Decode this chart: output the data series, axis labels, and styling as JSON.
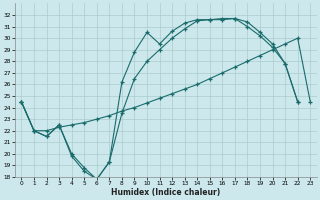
{
  "bg_color": "#cce8ec",
  "grid_color": "#aacccc",
  "line_color": "#1a6b6b",
  "xlabel": "Humidex (Indice chaleur)",
  "ylim": [
    18,
    33
  ],
  "xlim": [
    -0.5,
    23.5
  ],
  "yticks": [
    18,
    19,
    20,
    21,
    22,
    23,
    24,
    25,
    26,
    27,
    28,
    29,
    30,
    31,
    32
  ],
  "xticks": [
    0,
    1,
    2,
    3,
    4,
    5,
    6,
    7,
    8,
    9,
    10,
    11,
    12,
    13,
    14,
    15,
    16,
    17,
    18,
    19,
    20,
    21,
    22,
    23
  ],
  "curve1_x": [
    0,
    1,
    2,
    3,
    4,
    5,
    6,
    7,
    8,
    9,
    10,
    11,
    12,
    13,
    14,
    15,
    16,
    17,
    18,
    19,
    20,
    21,
    22
  ],
  "curve1_y": [
    24.5,
    22.0,
    21.5,
    22.5,
    19.8,
    18.5,
    17.8,
    19.3,
    26.2,
    28.8,
    30.5,
    29.5,
    30.6,
    31.3,
    31.6,
    31.6,
    31.7,
    31.7,
    31.4,
    30.5,
    29.5,
    27.8,
    24.5
  ],
  "curve2_x": [
    0,
    1,
    2,
    3,
    4,
    5,
    6,
    7,
    8,
    9,
    10,
    11,
    12,
    13,
    14,
    15,
    16,
    17,
    18,
    19,
    20,
    21,
    22,
    23
  ],
  "curve2_y": [
    24.5,
    22.0,
    22.0,
    22.3,
    22.5,
    22.7,
    23.0,
    23.3,
    23.7,
    24.0,
    24.4,
    24.8,
    25.2,
    25.6,
    26.0,
    26.5,
    27.0,
    27.5,
    28.0,
    28.5,
    29.0,
    29.5,
    30.0,
    24.5
  ],
  "curve3_x": [
    0,
    1,
    2,
    3,
    4,
    5,
    6,
    7,
    8,
    9,
    10,
    11,
    12,
    13,
    14,
    15,
    16,
    17,
    18,
    19,
    20,
    21,
    22
  ],
  "curve3_y": [
    24.5,
    22.0,
    21.5,
    22.5,
    20.0,
    18.8,
    17.8,
    19.3,
    23.5,
    26.5,
    28.0,
    29.0,
    30.0,
    30.8,
    31.5,
    31.6,
    31.6,
    31.7,
    31.0,
    30.2,
    29.2,
    27.8,
    24.5
  ]
}
